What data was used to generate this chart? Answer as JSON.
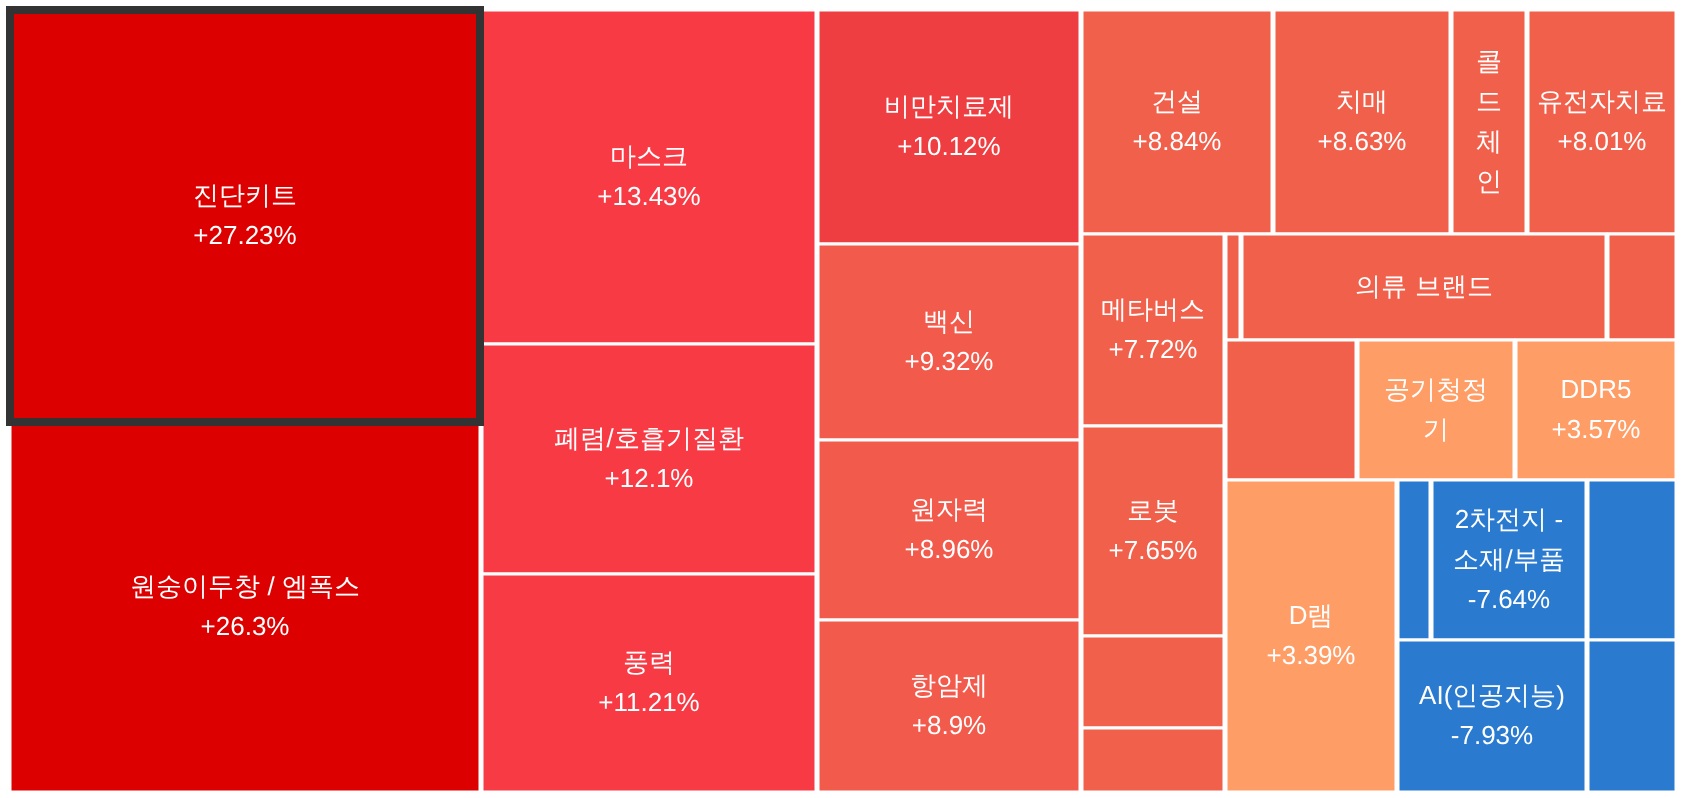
{
  "chart_data": {
    "type": "other",
    "categories": [
      "진단키트",
      "원숭이두창 / 엠폭스",
      "마스크",
      "폐렴/호흡기질환",
      "풍력",
      "비만치료제",
      "백신",
      "원자력",
      "항암제",
      "건설",
      "치매",
      "콜드체인",
      "유전자치료",
      "메타버스",
      "로봇",
      null,
      null,
      null,
      "의류 브랜드",
      null,
      null,
      "공기청정기",
      "DDR5",
      "D램",
      "2차전지 - 소재/부품",
      null,
      "AI(인공지능)",
      null,
      null
    ],
    "values": [
      27.23,
      26.3,
      13.43,
      12.1,
      11.21,
      10.12,
      9.32,
      8.96,
      8.9,
      8.84,
      8.63,
      null,
      8.01,
      7.72,
      7.65,
      null,
      null,
      null,
      null,
      null,
      null,
      null,
      3.57,
      3.39,
      -7.64,
      null,
      -7.93,
      null,
      null
    ],
    "value_labels": [
      "+27.23%",
      "+26.3%",
      "+13.43%",
      "+12.1%",
      "+11.21%",
      "+10.12%",
      "+9.32%",
      "+8.96%",
      "+8.9%",
      "+8.84%",
      "+8.63%",
      null,
      "+8.01%",
      "+7.72%",
      "+7.65%",
      null,
      null,
      null,
      null,
      null,
      null,
      null,
      "+3.57%",
      "+3.39%",
      "-7.64%",
      null,
      "-7.93%",
      null,
      null
    ],
    "colors": [
      "#dd0000",
      "#dd0000",
      "#f73a44",
      "#f73a44",
      "#f73a44",
      "#ef3e41",
      "#f25a4c",
      "#f25a4c",
      "#f25a4c",
      "#f0604b",
      "#f0604b",
      "#f0604b",
      "#f0604b",
      "#f0604b",
      "#f0604b",
      "#f0604b",
      "#f0604b",
      "#f0604b",
      "#f0604b",
      "#f0604b",
      "#f0604b",
      "#ff9d66",
      "#ff9d66",
      "#ff9d66",
      "#2a7acf",
      "#2a7acf",
      "#2a7acf",
      "#2a7acf",
      "#2a7acf"
    ],
    "data_labels": true
  }
}
